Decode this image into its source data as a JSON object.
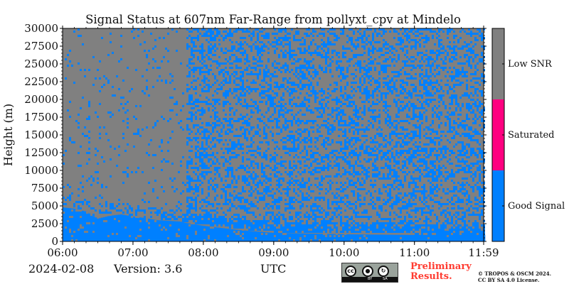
{
  "colors": {
    "good_signal": "#0080ff",
    "saturated": "#ff0080",
    "low_snr": "#808080"
  },
  "chart_data": {
    "type": "heatmap",
    "title": "Signal Status at 607nm Far-Range from pollyxt_cpv at Mindelo",
    "xlabel": "",
    "ylabel": "Height (m)",
    "x_ticks": [
      "06:00",
      "07:00",
      "08:00",
      "09:00",
      "10:00",
      "11:00",
      "11:59"
    ],
    "y_ticks": [
      "0",
      "2500",
      "5000",
      "7500",
      "10000",
      "12500",
      "15000",
      "17500",
      "20000",
      "22500",
      "25000",
      "27500",
      "30000"
    ],
    "xlim": [
      "06:00",
      "11:59"
    ],
    "ylim": [
      0,
      30000
    ],
    "colorbar": {
      "categories": [
        "Good Signal",
        "Saturated",
        "Low SNR"
      ],
      "colors": [
        "#0080ff",
        "#ff0080",
        "#808080"
      ]
    },
    "good_signal_top_m": [
      {
        "time": "06:00",
        "height": 4800
      },
      {
        "time": "06:10",
        "height": 4600
      },
      {
        "time": "06:20",
        "height": 4200
      },
      {
        "time": "06:30",
        "height": 3200
      },
      {
        "time": "06:40",
        "height": 3600
      },
      {
        "time": "06:50",
        "height": 3800
      },
      {
        "time": "07:00",
        "height": 3500
      },
      {
        "time": "07:10",
        "height": 3300
      },
      {
        "time": "07:20",
        "height": 3000
      },
      {
        "time": "07:30",
        "height": 2900
      },
      {
        "time": "07:40",
        "height": 2800
      },
      {
        "time": "07:45",
        "height": 2600
      },
      {
        "time": "08:00",
        "height": 2200
      },
      {
        "time": "08:30",
        "height": 1600
      },
      {
        "time": "09:00",
        "height": 1200
      },
      {
        "time": "10:00",
        "height": 1000
      },
      {
        "time": "11:00",
        "height": 900
      },
      {
        "time": "11:59",
        "height": 900
      }
    ],
    "transition_time": "07:45"
  },
  "footer": {
    "date": "2024-02-08",
    "version": "Version: 3.6",
    "utc": "UTC",
    "license_badge": {
      "cc": "cc",
      "by": "BY",
      "sa": "SA"
    },
    "preliminary": [
      "Preliminary",
      "Results."
    ],
    "copyright": [
      "© TROPOS & OSCM 2024.",
      "CC BY SA 4.0 License."
    ]
  }
}
